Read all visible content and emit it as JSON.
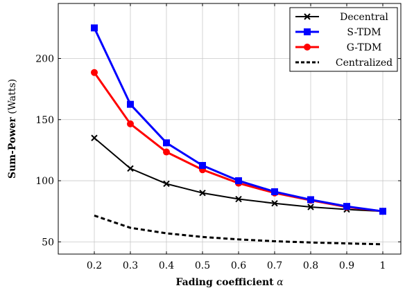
{
  "chart_data": {
    "type": "line",
    "xlabel_bold": "Fading coefficient",
    "xlabel_symbol": "α",
    "ylabel_bold": "Sum-Power",
    "ylabel_unit": "(Watts)",
    "x": [
      0.2,
      0.3,
      0.4,
      0.5,
      0.6,
      0.7,
      0.8,
      0.9,
      1
    ],
    "xtick_labels": [
      "0.2",
      "0.3",
      "0.4",
      "0.5",
      "0.6",
      "0.7",
      "0.8",
      "0.9",
      "1"
    ],
    "yticks": [
      50,
      100,
      150,
      200
    ],
    "ytick_labels": [
      "50",
      "100",
      "150",
      "200"
    ],
    "xlim": [
      0.1,
      1.05
    ],
    "ylim": [
      40,
      245
    ],
    "grid": true,
    "legend_position": "top-right",
    "series": [
      {
        "name": "Decentral",
        "color": "#000000",
        "marker": "x",
        "dashed": false,
        "values": [
          135,
          110,
          97.5,
          90,
          85,
          81.5,
          78.5,
          76.5,
          75
        ]
      },
      {
        "name": "S-TDM",
        "color": "#0000ff",
        "marker": "square",
        "dashed": false,
        "values": [
          225,
          162.5,
          131,
          112.5,
          100,
          91,
          84.5,
          79,
          75
        ]
      },
      {
        "name": "G-TDM",
        "color": "#ff0000",
        "marker": "circle",
        "dashed": false,
        "values": [
          188.5,
          146.5,
          123.5,
          109,
          98,
          90,
          84,
          78.5,
          75
        ]
      },
      {
        "name": "Centralized",
        "color": "#000000",
        "marker": "none",
        "dashed": true,
        "values": [
          71.5,
          61.5,
          57,
          54,
          52,
          50.5,
          49.5,
          48.7,
          48
        ]
      }
    ]
  }
}
